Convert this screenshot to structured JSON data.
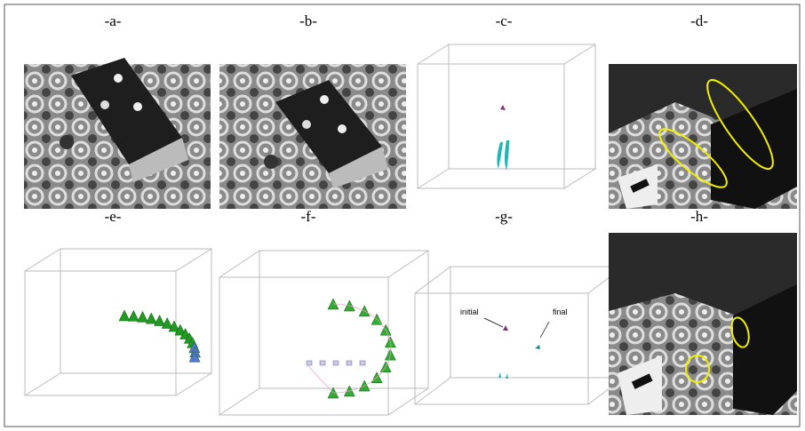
{
  "panels": [
    {
      "label": "-a-"
    },
    {
      "label": "-b-"
    },
    {
      "label": "-c-"
    },
    {
      "label": "-d-"
    },
    {
      "label": "-e-"
    },
    {
      "label": "-f-"
    },
    {
      "label": "-g-",
      "annotations": [
        {
          "text": "initial"
        },
        {
          "text": "final"
        }
      ]
    },
    {
      "label": "-h-"
    }
  ]
}
